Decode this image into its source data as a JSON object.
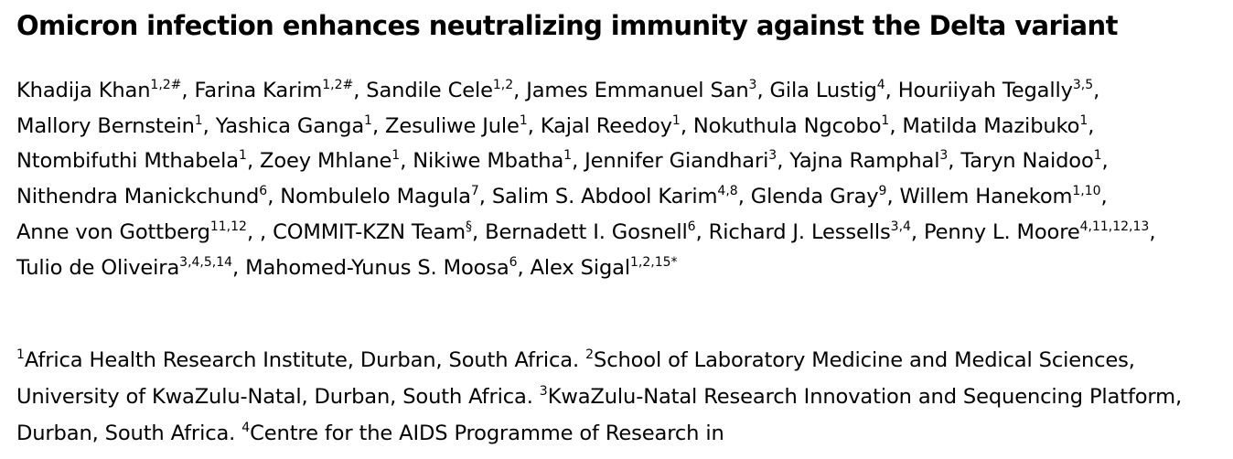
{
  "title": "Omicron infection enhances neutralizing immunity against the Delta variant",
  "authors": [
    {
      "name": "Khadija Khan",
      "sup": "1,2#"
    },
    {
      "name": "Farina Karim",
      "sup": "1,2#"
    },
    {
      "name": "Sandile Cele",
      "sup": "1,2"
    },
    {
      "name": "James Emmanuel San",
      "sup": "3"
    },
    {
      "name": "Gila Lustig",
      "sup": "4"
    },
    {
      "name": "Houriiyah Tegally",
      "sup": "3,5"
    },
    {
      "name": "Mallory Bernstein",
      "sup": "1"
    },
    {
      "name": "Yashica Ganga",
      "sup": "1"
    },
    {
      "name": "Zesuliwe Jule",
      "sup": "1"
    },
    {
      "name": "Kajal Reedoy",
      "sup": "1"
    },
    {
      "name": "Nokuthula Ngcobo",
      "sup": "1"
    },
    {
      "name": "Matilda Mazibuko",
      "sup": "1"
    },
    {
      "name": "Ntombifuthi Mthabela",
      "sup": "1"
    },
    {
      "name": "Zoey Mhlane",
      "sup": "1"
    },
    {
      "name": "Nikiwe Mbatha",
      "sup": "1"
    },
    {
      "name": "Jennifer Giandhari",
      "sup": "3"
    },
    {
      "name": "Yajna Ramphal",
      "sup": "3"
    },
    {
      "name": "Taryn Naidoo",
      "sup": "1"
    },
    {
      "name": "Nithendra Manickchund",
      "sup": "6"
    },
    {
      "name": "Nombulelo Magula",
      "sup": "7"
    },
    {
      "name": "Salim S. Abdool Karim",
      "sup": "4,8"
    },
    {
      "name": "Glenda Gray",
      "sup": "9"
    },
    {
      "name": "Willem Hanekom",
      "sup": "1,10"
    },
    {
      "name": "Anne von Gottberg",
      "sup": "11,12"
    },
    {
      "name": "",
      "sup": ""
    },
    {
      "name": "COMMIT-KZN Team",
      "sup": "§"
    },
    {
      "name": "Bernadett I. Gosnell",
      "sup": "6"
    },
    {
      "name": "Richard J. Lessells",
      "sup": "3,4"
    },
    {
      "name": "Penny L. Moore",
      "sup": "4,11,12,13"
    },
    {
      "name": "Tulio de Oliveira",
      "sup": "3,4,5,14"
    },
    {
      "name": "Mahomed-Yunus S. Moosa",
      "sup": "6"
    },
    {
      "name": "Alex Sigal",
      "sup": "1,2,15*"
    }
  ],
  "affiliations": [
    {
      "sup": "1",
      "text": "Africa Health Research Institute, Durban, South Africa."
    },
    {
      "sup": "2",
      "text": "School of Laboratory Medicine and Medical Sciences, University of KwaZulu-Natal, Durban, South Africa."
    },
    {
      "sup": "3",
      "text": "KwaZulu-Natal Research Innovation and Sequencing Platform, Durban, South Africa."
    },
    {
      "sup": "4",
      "text": "Centre for the AIDS Programme of Research in"
    }
  ]
}
